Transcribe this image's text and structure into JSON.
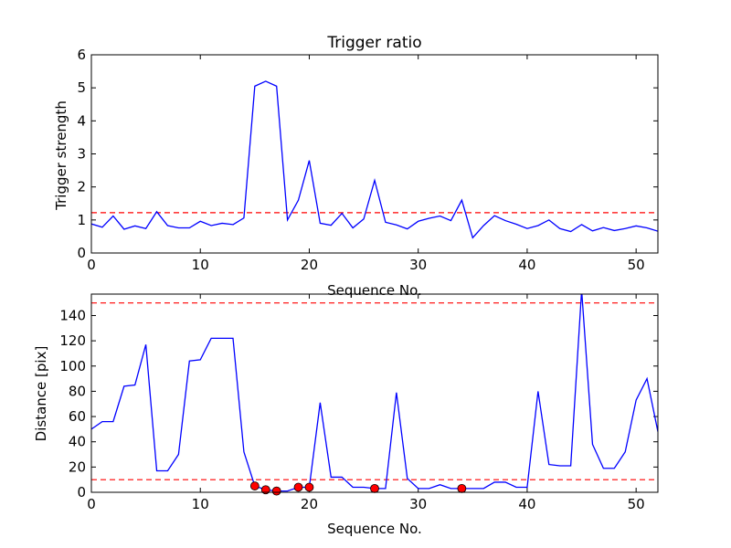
{
  "chart_data": [
    {
      "type": "line",
      "title": "Trigger ratio",
      "xlabel": "Sequence No.",
      "ylabel": "Trigger strength",
      "xlim": [
        0,
        52
      ],
      "ylim": [
        0,
        6
      ],
      "xticks": [
        "0",
        "10",
        "20",
        "30",
        "40",
        "50"
      ],
      "yticks": [
        "0",
        "1",
        "2",
        "3",
        "4",
        "5",
        "6"
      ],
      "series_color": "#0000ff",
      "threshold_color": "#ff0000",
      "threshold": 1.22,
      "x": [
        0,
        1,
        2,
        3,
        4,
        5,
        6,
        7,
        8,
        9,
        10,
        11,
        12,
        13,
        14,
        15,
        16,
        17,
        18,
        19,
        20,
        21,
        22,
        23,
        24,
        25,
        26,
        27,
        28,
        29,
        30,
        31,
        32,
        33,
        34,
        35,
        36,
        37,
        38,
        39,
        40,
        41,
        42,
        43,
        44,
        45,
        46,
        47,
        48,
        49,
        50,
        51,
        52
      ],
      "y": [
        0.88,
        0.78,
        1.12,
        0.72,
        0.82,
        0.74,
        1.25,
        0.83,
        0.76,
        0.76,
        0.96,
        0.83,
        0.9,
        0.86,
        1.06,
        5.05,
        5.2,
        5.05,
        1.0,
        1.6,
        2.8,
        0.9,
        0.84,
        1.2,
        0.76,
        1.03,
        2.2,
        0.93,
        0.85,
        0.73,
        0.96,
        1.05,
        1.12,
        0.98,
        1.6,
        0.46,
        0.83,
        1.13,
        0.98,
        0.87,
        0.74,
        0.83,
        1.0,
        0.74,
        0.65,
        0.86,
        0.67,
        0.77,
        0.68,
        0.74,
        0.82,
        0.76,
        0.66
      ]
    },
    {
      "type": "line",
      "title": "",
      "xlabel": "Sequence No.",
      "ylabel": "Distance [pix]",
      "xlim": [
        0,
        52
      ],
      "ylim": [
        0,
        157
      ],
      "xticks": [
        "0",
        "10",
        "20",
        "30",
        "40",
        "50"
      ],
      "yticks": [
        "0",
        "20",
        "40",
        "60",
        "80",
        "100",
        "120",
        "140"
      ],
      "series_color": "#0000ff",
      "threshold_color": "#ff0000",
      "marker_color": "#ff0000",
      "thresholds": [
        10,
        150
      ],
      "x": [
        0,
        1,
        2,
        3,
        4,
        5,
        6,
        7,
        8,
        9,
        10,
        11,
        12,
        13,
        14,
        15,
        16,
        17,
        18,
        19,
        20,
        21,
        22,
        23,
        24,
        25,
        26,
        27,
        28,
        29,
        30,
        31,
        32,
        33,
        34,
        35,
        36,
        37,
        38,
        39,
        40,
        41,
        42,
        43,
        44,
        45,
        46,
        47,
        48,
        49,
        50,
        51,
        52
      ],
      "y": [
        50,
        56,
        56,
        84,
        85,
        117,
        17,
        17,
        30,
        104,
        105,
        122,
        122,
        122,
        32,
        5,
        2,
        1,
        1,
        4,
        4,
        71,
        12,
        12,
        4,
        4,
        3,
        3,
        79,
        11,
        3,
        3,
        6,
        3,
        3,
        3,
        3,
        8,
        8,
        4,
        4,
        80,
        22,
        21,
        21,
        160,
        38,
        19,
        19,
        32,
        73,
        90,
        48
      ],
      "markers": [
        {
          "x": 15,
          "y": 5
        },
        {
          "x": 16,
          "y": 2
        },
        {
          "x": 17,
          "y": 1
        },
        {
          "x": 19,
          "y": 4
        },
        {
          "x": 20,
          "y": 4
        },
        {
          "x": 26,
          "y": 3
        },
        {
          "x": 34,
          "y": 3
        }
      ]
    }
  ]
}
